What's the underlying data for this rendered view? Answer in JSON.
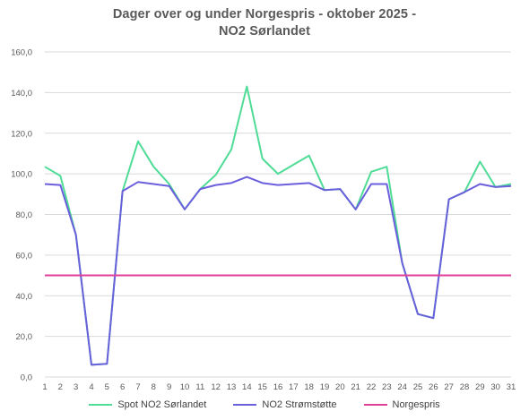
{
  "chart_data": {
    "type": "line",
    "title_lines": [
      "Dager over og under Norgespris - oktober 2025 -",
      "NO2 Sørlandet"
    ],
    "xlabel": "",
    "ylabel": "",
    "x": [
      1,
      2,
      3,
      4,
      5,
      6,
      7,
      8,
      9,
      10,
      11,
      12,
      13,
      14,
      15,
      16,
      17,
      18,
      19,
      20,
      21,
      22,
      23,
      24,
      25,
      26,
      27,
      28,
      29,
      30,
      31
    ],
    "ylim": [
      0,
      160
    ],
    "yticks": [
      "0,0",
      "20,0",
      "40,0",
      "60,0",
      "80,0",
      "100,0",
      "120,0",
      "140,0",
      "160,0"
    ],
    "ytick_values": [
      0,
      20,
      40,
      60,
      80,
      100,
      120,
      140,
      160
    ],
    "grid": true,
    "legend_position": "bottom",
    "series": [
      {
        "name": "Spot NO2 Sørlandet",
        "color": "#4fdc96",
        "values": [
          103.5,
          99.0,
          70.0,
          6.0,
          6.5,
          91.5,
          116.0,
          103.5,
          95.0,
          82.5,
          92.5,
          99.5,
          112.0,
          143.0,
          107.5,
          100.0,
          104.5,
          109.0,
          92.0,
          92.5,
          82.5,
          101.0,
          103.5,
          56.0,
          31.0,
          29.0,
          87.5,
          91.0,
          106.0,
          93.5,
          95.0
        ]
      },
      {
        "name": "NO2 Strømstøtte",
        "color": "#6a5fdc",
        "values": [
          95.0,
          94.5,
          70.0,
          6.0,
          6.5,
          91.5,
          96.0,
          95.0,
          94.0,
          82.5,
          92.5,
          94.5,
          95.5,
          98.5,
          95.5,
          94.5,
          95.0,
          95.5,
          92.0,
          92.5,
          82.5,
          95.0,
          95.0,
          56.0,
          31.0,
          29.0,
          87.5,
          91.0,
          95.0,
          93.5,
          94.0
        ]
      },
      {
        "name": "Norgespris",
        "color": "#e0409a",
        "values": [
          50,
          50,
          50,
          50,
          50,
          50,
          50,
          50,
          50,
          50,
          50,
          50,
          50,
          50,
          50,
          50,
          50,
          50,
          50,
          50,
          50,
          50,
          50,
          50,
          50,
          50,
          50,
          50,
          50,
          50,
          50
        ]
      }
    ]
  }
}
